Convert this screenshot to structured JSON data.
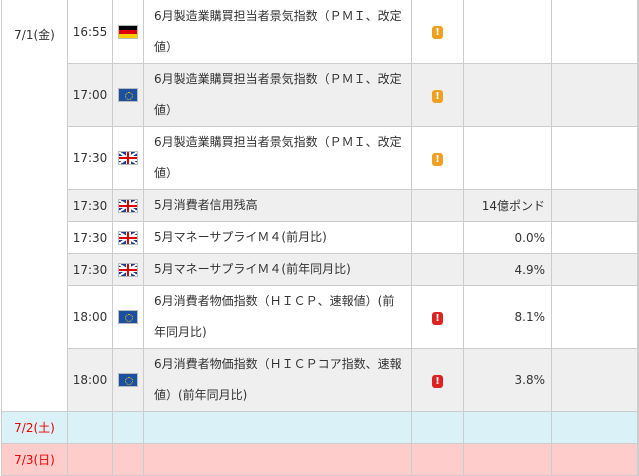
{
  "rows": [
    {
      "date": "7/1(金)",
      "time": "16:55",
      "flag": "germany-flag",
      "event": "6月製造業購買担当者景気指数（ＰＭＩ、改定値）",
      "importance": "!",
      "importance_color": "#f0a020",
      "value": ""
    },
    {
      "time": "17:00",
      "flag": "eu-flag",
      "event": "6月製造業購買担当者景気指数（ＰＭＩ、改定値）",
      "importance": "!",
      "importance_color": "#f0a020",
      "value": ""
    },
    {
      "time": "17:30",
      "flag": "uk-flag",
      "event": "6月製造業購買担当者景気指数（ＰＭＩ、改定値）",
      "importance": "!",
      "importance_color": "#f0a020",
      "value": ""
    },
    {
      "time": "17:30",
      "flag": "uk-flag",
      "event": "5月消費者信用残高",
      "importance": "",
      "value": "14億ポンド"
    },
    {
      "time": "17:30",
      "flag": "uk-flag",
      "event": "5月マネーサプライＭ４(前月比)",
      "importance": "",
      "value": "0.0%"
    },
    {
      "time": "17:30",
      "flag": "uk-flag",
      "event": "5月マネーサプライＭ４(前年同月比)",
      "importance": "",
      "value": "4.9%"
    },
    {
      "time": "18:00",
      "flag": "eu-flag",
      "event": "6月消費者物価指数（ＨＩＣＰ、速報値）(前年同月比)",
      "importance": "!",
      "importance_color": "#dd2222",
      "value": "8.1%"
    },
    {
      "time": "18:00",
      "flag": "eu-flag",
      "event": "6月消費者物価指数（ＨＩＣＰコア指数、速報値）(前年同月比)",
      "importance": "!",
      "importance_color": "#dd2222",
      "value": "3.8%"
    }
  ],
  "weekend": [
    {
      "date": "7/2(土)"
    },
    {
      "date": "7/3(日)"
    }
  ],
  "colors": {
    "saturday": "#daf1f8",
    "sunday": "#ffcccc",
    "alt_row": "#efefef"
  }
}
